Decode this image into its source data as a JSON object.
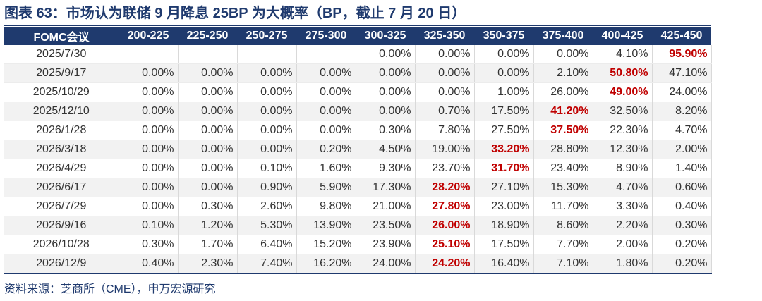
{
  "title": "图表 63：市场认为联储 9 月降息 25BP 为大概率（BP，截止 7 月 20 日）",
  "table": {
    "headers": [
      "FOMC会议",
      "200-225",
      "225-250",
      "250-275",
      "275-300",
      "300-325",
      "325-350",
      "350-375",
      "375-400",
      "400-425",
      "425-450"
    ],
    "rows": [
      {
        "date": "2025/7/30",
        "values": [
          "",
          "",
          "",
          "",
          "0.00%",
          "0.00%",
          "0.00%",
          "0.00%",
          "4.10%",
          "95.90%"
        ],
        "max_index": 9
      },
      {
        "date": "2025/9/17",
        "values": [
          "0.00%",
          "0.00%",
          "0.00%",
          "0.00%",
          "0.00%",
          "0.00%",
          "0.00%",
          "2.10%",
          "50.80%",
          "47.10%"
        ],
        "max_index": 8
      },
      {
        "date": "2025/10/29",
        "values": [
          "0.00%",
          "0.00%",
          "0.00%",
          "0.00%",
          "0.00%",
          "0.00%",
          "1.00%",
          "26.00%",
          "49.00%",
          "24.00%"
        ],
        "max_index": 8
      },
      {
        "date": "2025/12/10",
        "values": [
          "0.00%",
          "0.00%",
          "0.00%",
          "0.00%",
          "0.00%",
          "0.70%",
          "17.50%",
          "41.20%",
          "32.50%",
          "8.20%"
        ],
        "max_index": 7
      },
      {
        "date": "2026/1/28",
        "values": [
          "0.00%",
          "0.00%",
          "0.00%",
          "0.00%",
          "0.30%",
          "7.80%",
          "27.50%",
          "37.50%",
          "22.30%",
          "4.70%"
        ],
        "max_index": 7
      },
      {
        "date": "2026/3/18",
        "values": [
          "0.00%",
          "0.00%",
          "0.00%",
          "0.20%",
          "4.50%",
          "19.00%",
          "33.20%",
          "28.80%",
          "12.30%",
          "2.00%"
        ],
        "max_index": 6
      },
      {
        "date": "2026/4/29",
        "values": [
          "0.00%",
          "0.00%",
          "0.10%",
          "1.60%",
          "9.30%",
          "23.70%",
          "31.70%",
          "23.40%",
          "8.90%",
          "1.40%"
        ],
        "max_index": 6
      },
      {
        "date": "2026/6/17",
        "values": [
          "0.00%",
          "0.00%",
          "0.90%",
          "5.90%",
          "17.30%",
          "28.20%",
          "27.10%",
          "15.30%",
          "4.70%",
          "0.60%"
        ],
        "max_index": 5
      },
      {
        "date": "2026/7/29",
        "values": [
          "0.00%",
          "0.30%",
          "2.60%",
          "9.80%",
          "21.00%",
          "27.80%",
          "23.00%",
          "11.70%",
          "3.30%",
          "0.40%"
        ],
        "max_index": 5
      },
      {
        "date": "2026/9/16",
        "values": [
          "0.10%",
          "1.20%",
          "5.30%",
          "13.90%",
          "23.50%",
          "26.00%",
          "18.90%",
          "8.60%",
          "2.20%",
          "0.30%"
        ],
        "max_index": 5
      },
      {
        "date": "2026/10/28",
        "values": [
          "0.30%",
          "1.70%",
          "6.40%",
          "15.20%",
          "23.90%",
          "25.10%",
          "17.50%",
          "7.70%",
          "2.00%",
          "0.20%"
        ],
        "max_index": 5
      },
      {
        "date": "2026/12/9",
        "values": [
          "0.40%",
          "2.30%",
          "7.40%",
          "16.20%",
          "24.00%",
          "24.20%",
          "16.40%",
          "7.10%",
          "1.80%",
          "0.20%"
        ],
        "max_index": 5
      }
    ]
  },
  "colors": {
    "header_bg": "#1f3a6e",
    "highlight": "#c00000",
    "stripe": "#f2f2f2"
  },
  "source": "资料来源：芝商所（CME），申万宏源研究"
}
